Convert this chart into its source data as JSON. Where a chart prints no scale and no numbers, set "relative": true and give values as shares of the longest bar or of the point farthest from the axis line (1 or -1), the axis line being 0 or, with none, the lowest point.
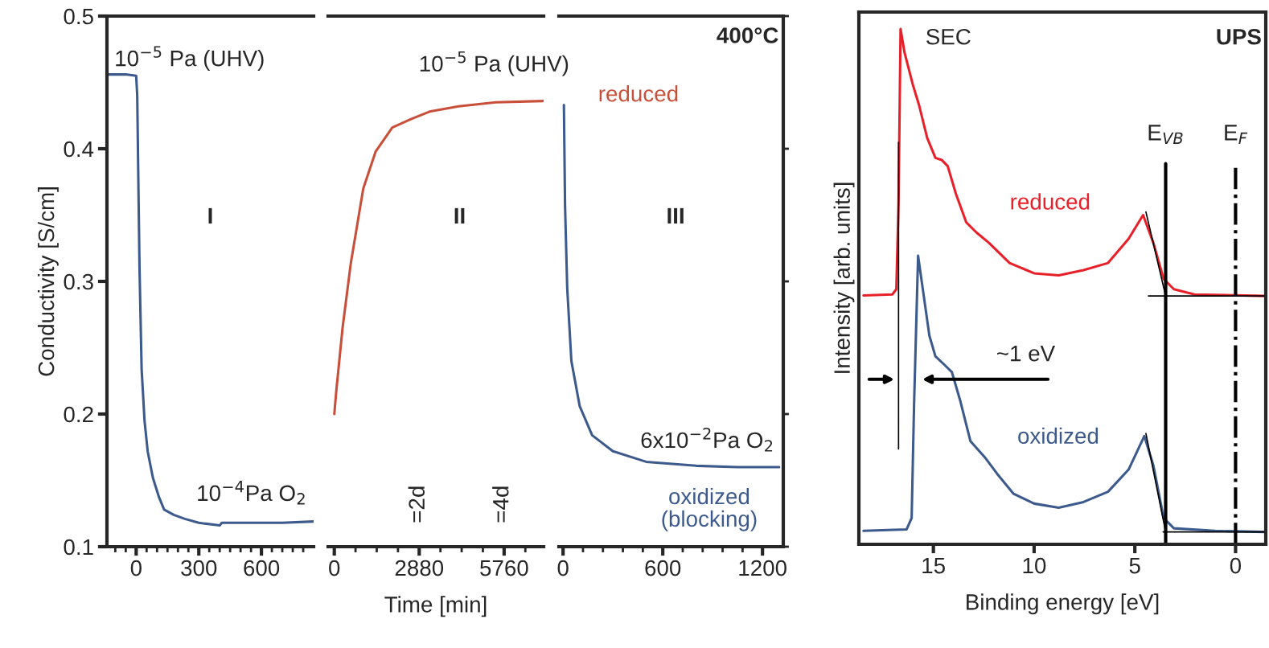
{
  "chart_data": [
    {
      "type": "line",
      "ylabel": "Conductivity [S/cm]",
      "xlim": [
        -140,
        850
      ],
      "ylim": [
        0.1,
        0.5
      ],
      "yticks": [
        0.1,
        0.2,
        0.3,
        0.4,
        0.5
      ],
      "xticks": [
        {
          "value": -100,
          "label": null
        },
        {
          "value": -50,
          "label": null
        },
        0,
        {
          "value": 50,
          "label": null
        },
        {
          "value": 100,
          "label": null
        },
        {
          "value": 150,
          "label": null
        },
        {
          "value": 200,
          "label": null
        },
        {
          "value": 250,
          "label": null
        },
        300,
        {
          "value": 350,
          "label": null
        },
        {
          "value": 400,
          "label": null
        },
        {
          "value": 450,
          "label": null
        },
        {
          "value": 500,
          "label": null
        },
        {
          "value": 550,
          "label": null
        },
        600,
        {
          "value": 650,
          "label": null
        },
        {
          "value": 700,
          "label": null
        },
        {
          "value": 750,
          "label": null
        },
        {
          "value": 800,
          "label": null
        }
      ],
      "annotations": [
        "10$^{−5}$ Pa (UHV)",
        "I",
        "10$^{−4}$Pa O$_{2}$"
      ],
      "series": [
        {
          "color": "#3d5a8c",
          "x": [
            -140,
            -50,
            0,
            5,
            10,
            16,
            26,
            40,
            55,
            80,
            110,
            134,
            180,
            233,
            300,
            400,
            410,
            500,
            600,
            700,
            850
          ],
          "values": [
            0.456,
            0.456,
            0.455,
            0.44,
            0.38,
            0.31,
            0.234,
            0.195,
            0.172,
            0.152,
            0.137,
            0.128,
            0.124,
            0.121,
            0.118,
            0.116,
            0.118,
            0.118,
            0.118,
            0.118,
            0.119
          ]
        }
      ]
    },
    {
      "type": "line",
      "xlabel": "Time [min]",
      "xlim": [
        -210,
        7100
      ],
      "ylim": [
        0.1,
        0.5
      ],
      "tick_labels": "x",
      "xticks": [
        0,
        {
          "value": 720,
          "label": null
        },
        {
          "value": 1440,
          "label": null
        },
        {
          "value": 2160,
          "label": null
        },
        2880,
        {
          "value": 3600,
          "label": null
        },
        {
          "value": 4320,
          "label": null
        },
        {
          "value": 5040,
          "label": null
        },
        5760,
        {
          "value": 6480,
          "label": null
        }
      ],
      "annotations": [
        "10$^{−5}$ Pa (UHV)",
        "II",
        "=2d",
        "=4d"
      ],
      "series": [
        {
          "name": "reduced",
          "color": "#c8503a",
          "x": [
            0,
            70,
            281,
            562,
            983,
            1405,
            1967,
            2669,
            3231,
            4215,
            5480,
            7090
          ],
          "values": [
            0.2,
            0.218,
            0.265,
            0.314,
            0.37,
            0.398,
            0.416,
            0.423,
            0.428,
            0.432,
            0.435,
            0.436
          ]
        }
      ]
    },
    {
      "type": "line",
      "xlim": [
        -25,
        1325
      ],
      "ylim": [
        0.1,
        0.5
      ],
      "yticks": [
        {
          "value": 0.1,
          "label": null
        },
        {
          "value": 0.2,
          "label": null
        },
        {
          "value": 0.3,
          "label": null
        },
        {
          "value": 0.4,
          "label": null
        },
        {
          "value": 0.5,
          "label": null
        }
      ],
      "tick_labels": "x",
      "xticks": [
        0,
        {
          "value": 120,
          "label": null
        },
        {
          "value": 240,
          "label": null
        },
        {
          "value": 360,
          "label": null
        },
        {
          "value": 480,
          "label": null
        },
        600,
        {
          "value": 720,
          "label": null
        },
        {
          "value": 840,
          "label": null
        },
        {
          "value": 960,
          "label": null
        },
        {
          "value": 1080,
          "label": null
        },
        1200
      ],
      "annotations": [
        "400°C",
        "III",
        "6x10$^{−2}$Pa O$_{2}$"
      ],
      "series": [
        {
          "name": "oxidized\n(blocking)",
          "color": "#3d5a8c",
          "x": [
            5,
            12,
            25,
            50,
            100,
            175,
            300,
            500,
            800,
            1050,
            1300
          ],
          "values": [
            0.433,
            0.357,
            0.295,
            0.24,
            0.206,
            0.184,
            0.172,
            0.164,
            0.161,
            0.16,
            0.16
          ]
        }
      ]
    },
    {
      "type": "line",
      "relative": true,
      "xlabel": "Binding energy [eV]",
      "ylabel": "Intensity [arb. units]",
      "xlim": [
        18.7,
        -1.5
      ],
      "xticks": [
        15,
        10,
        5,
        0
      ],
      "tick_labels": "x",
      "annotations": [
        "SEC",
        "UPS",
        "~1 eV"
      ],
      "ref_lines": [
        {
          "axis": "x",
          "value": 3.47,
          "label": "E$_{VB}$",
          "color": "#000000",
          "line_style": "solid"
        },
        {
          "axis": "x",
          "value": 0,
          "label": "E$_{F}$",
          "color": "#000000",
          "line_style": "dashdot"
        }
      ],
      "series": [
        {
          "name": "reduced",
          "color": "#e8202a",
          "x": [
            18.47,
            17.04,
            16.84,
            16.73,
            16.63,
            16.43,
            16.02,
            15.71,
            15.31,
            14.9,
            14.59,
            14.29,
            13.88,
            13.37,
            12.86,
            12.24,
            11.22,
            10.0,
            8.78,
            7.55,
            6.33,
            5.31,
            4.59,
            4.08,
            3.57,
            3.06,
            2.04,
            -1.43
          ],
          "values": [
            0.483,
            0.485,
            0.495,
            0.664,
            1.0,
            0.954,
            0.892,
            0.852,
            0.789,
            0.75,
            0.746,
            0.734,
            0.68,
            0.625,
            0.605,
            0.585,
            0.546,
            0.526,
            0.522,
            0.532,
            0.546,
            0.593,
            0.639,
            0.585,
            0.515,
            0.495,
            0.485,
            0.482
          ]
        },
        {
          "name": "oxidized",
          "color": "#3d5a8c",
          "x": [
            18.47,
            16.33,
            16.08,
            15.96,
            15.76,
            15.51,
            15.2,
            14.9,
            14.39,
            14.08,
            13.67,
            13.16,
            12.45,
            11.84,
            11.02,
            10.0,
            8.78,
            7.55,
            6.33,
            5.31,
            4.53,
            4.08,
            3.57,
            3.06,
            1.02,
            -1.43
          ],
          "values": [
            0.026,
            0.029,
            0.051,
            0.271,
            0.56,
            0.491,
            0.405,
            0.365,
            0.346,
            0.334,
            0.279,
            0.2,
            0.169,
            0.137,
            0.098,
            0.079,
            0.071,
            0.082,
            0.102,
            0.145,
            0.21,
            0.153,
            0.051,
            0.031,
            0.026,
            0.024
          ]
        },
        {
          "color": "#000000",
          "x": [
            16.73,
            16.73
          ],
          "values": [
            0.185,
            0.78
          ]
        },
        {
          "color": "#000000",
          "x": [
            4.45,
            3.47,
            4.33,
            -1.5
          ],
          "values": [
            0.645,
            0.482,
            0.482,
            0.482
          ]
        },
        {
          "color": "#000000",
          "x": [
            4.45,
            3.47,
            3.6,
            -1.5
          ],
          "values": [
            0.215,
            0.024,
            0.024,
            0.024
          ]
        }
      ]
    }
  ]
}
